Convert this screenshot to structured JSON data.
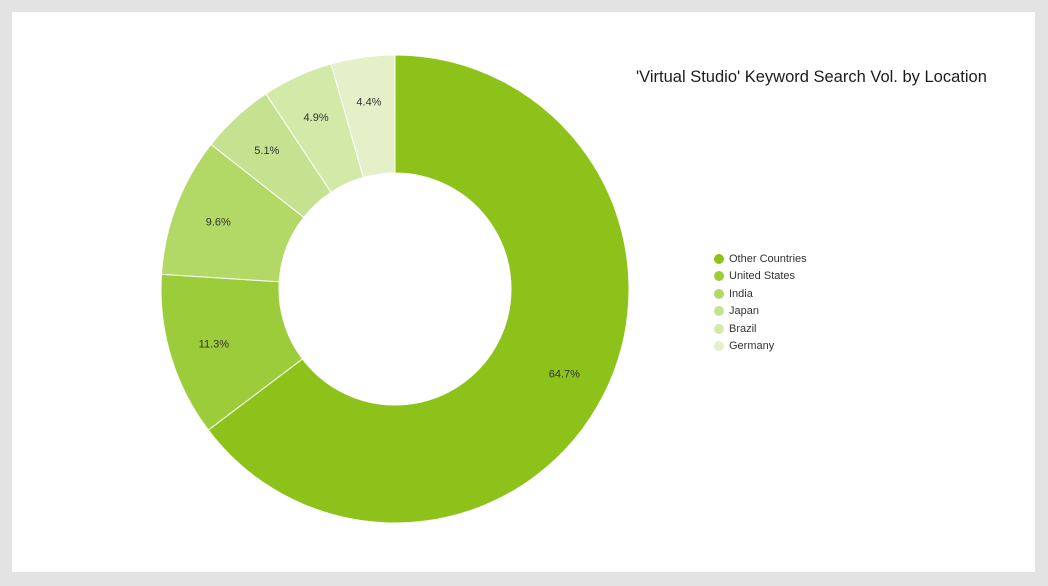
{
  "chart_data": {
    "type": "pie",
    "title": "'Virtual Studio' Keyword Search Vol. by Location",
    "donut": true,
    "legend_position": "right",
    "slices": [
      {
        "name": "Other Countries",
        "value": 64.7,
        "label": "64.7%",
        "color": "#8dc21a"
      },
      {
        "name": "United States",
        "value": 11.3,
        "label": "11.3%",
        "color": "#9dcc3a"
      },
      {
        "name": "India",
        "value": 9.6,
        "label": "9.6%",
        "color": "#b2d866"
      },
      {
        "name": "Japan",
        "value": 5.1,
        "label": "5.1%",
        "color": "#c5e290"
      },
      {
        "name": "Brazil",
        "value": 4.9,
        "label": "4.9%",
        "color": "#d3e9a8"
      },
      {
        "name": "Germany",
        "value": 4.4,
        "label": "4.4%",
        "color": "#e3f0c8"
      }
    ]
  }
}
